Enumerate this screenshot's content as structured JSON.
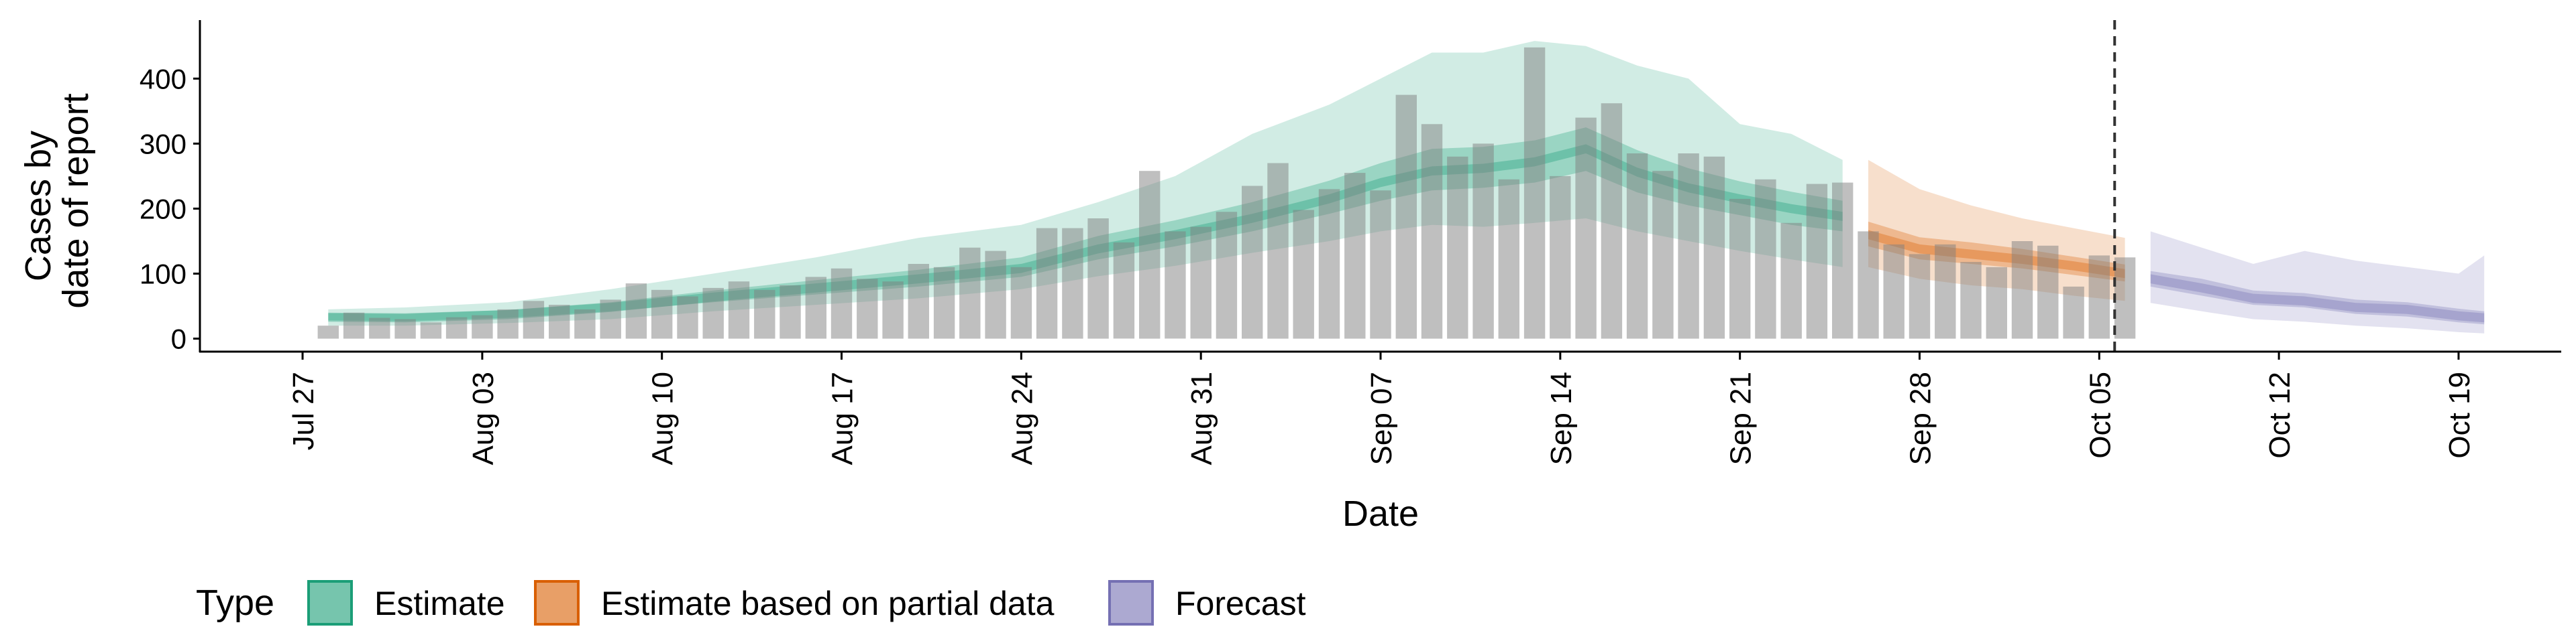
{
  "chart_data": {
    "type": "bar",
    "xlabel": "Date",
    "ylabel": [
      "Cases by",
      "date of report"
    ],
    "x_ticks": [
      {
        "date": "2020-07-27",
        "label": "Jul 27"
      },
      {
        "date": "2020-08-03",
        "label": "Aug 03"
      },
      {
        "date": "2020-08-10",
        "label": "Aug 10"
      },
      {
        "date": "2020-08-17",
        "label": "Aug 17"
      },
      {
        "date": "2020-08-24",
        "label": "Aug 24"
      },
      {
        "date": "2020-08-31",
        "label": "Aug 31"
      },
      {
        "date": "2020-09-07",
        "label": "Sep 07"
      },
      {
        "date": "2020-09-14",
        "label": "Sep 14"
      },
      {
        "date": "2020-09-21",
        "label": "Sep 21"
      },
      {
        "date": "2020-09-28",
        "label": "Sep 28"
      },
      {
        "date": "2020-10-05",
        "label": "Oct 05"
      },
      {
        "date": "2020-10-12",
        "label": "Oct 12"
      },
      {
        "date": "2020-10-19",
        "label": "Oct 19"
      }
    ],
    "xlim": [
      "2020-07-23",
      "2020-10-23"
    ],
    "ylim": [
      -20,
      490
    ],
    "y_ticks": [
      0,
      100,
      200,
      300,
      400
    ],
    "forecast_start": "2020-10-06",
    "reported_cases": {
      "dates": [
        "2020-07-28",
        "2020-07-29",
        "2020-07-30",
        "2020-07-31",
        "2020-08-01",
        "2020-08-02",
        "2020-08-03",
        "2020-08-04",
        "2020-08-05",
        "2020-08-06",
        "2020-08-07",
        "2020-08-08",
        "2020-08-09",
        "2020-08-10",
        "2020-08-11",
        "2020-08-12",
        "2020-08-13",
        "2020-08-14",
        "2020-08-15",
        "2020-08-16",
        "2020-08-17",
        "2020-08-18",
        "2020-08-19",
        "2020-08-20",
        "2020-08-21",
        "2020-08-22",
        "2020-08-23",
        "2020-08-24",
        "2020-08-25",
        "2020-08-26",
        "2020-08-27",
        "2020-08-28",
        "2020-08-29",
        "2020-08-30",
        "2020-08-31",
        "2020-09-01",
        "2020-09-02",
        "2020-09-03",
        "2020-09-04",
        "2020-09-05",
        "2020-09-06",
        "2020-09-07",
        "2020-09-08",
        "2020-09-09",
        "2020-09-10",
        "2020-09-11",
        "2020-09-12",
        "2020-09-13",
        "2020-09-14",
        "2020-09-15",
        "2020-09-16",
        "2020-09-17",
        "2020-09-18",
        "2020-09-19",
        "2020-09-20",
        "2020-09-21",
        "2020-09-22",
        "2020-09-23",
        "2020-09-24",
        "2020-09-25",
        "2020-09-26",
        "2020-09-27",
        "2020-09-28",
        "2020-09-29",
        "2020-09-30",
        "2020-10-01",
        "2020-10-02",
        "2020-10-03",
        "2020-10-04",
        "2020-10-05",
        "2020-10-06"
      ],
      "values": [
        20,
        40,
        32,
        30,
        25,
        33,
        36,
        45,
        58,
        52,
        45,
        60,
        85,
        75,
        65,
        78,
        88,
        75,
        82,
        95,
        108,
        92,
        88,
        115,
        110,
        140,
        135,
        110,
        170,
        170,
        185,
        148,
        258,
        165,
        172,
        195,
        235,
        270,
        198,
        230,
        255,
        228,
        375,
        330,
        280,
        300,
        245,
        448,
        250,
        340,
        362,
        285,
        258,
        285,
        280,
        215,
        245,
        178,
        238,
        240,
        165,
        145,
        130,
        145,
        118,
        110,
        150,
        143,
        80,
        128,
        125
      ]
    },
    "series": [
      {
        "name": "Estimate",
        "color": "#1b9e77",
        "dates": [
          "2020-07-28",
          "2020-07-31",
          "2020-08-04",
          "2020-08-08",
          "2020-08-12",
          "2020-08-16",
          "2020-08-20",
          "2020-08-24",
          "2020-08-27",
          "2020-08-30",
          "2020-09-02",
          "2020-09-05",
          "2020-09-07",
          "2020-09-09",
          "2020-09-11",
          "2020-09-13",
          "2020-09-15",
          "2020-09-17",
          "2020-09-19",
          "2020-09-21",
          "2020-09-23",
          "2020-09-25"
        ],
        "median": [
          33,
          32,
          37,
          48,
          64,
          78,
          92,
          108,
          138,
          160,
          185,
          215,
          240,
          258,
          262,
          272,
          292,
          256,
          232,
          215,
          200,
          188
        ],
        "lower50": [
          28,
          27,
          32,
          42,
          56,
          68,
          80,
          95,
          122,
          142,
          165,
          192,
          212,
          228,
          232,
          240,
          258,
          225,
          205,
          190,
          175,
          165
        ],
        "upper50": [
          39,
          38,
          44,
          56,
          74,
          90,
          106,
          125,
          158,
          182,
          210,
          243,
          270,
          292,
          295,
          305,
          325,
          290,
          262,
          242,
          226,
          212
        ],
        "lower90": [
          20,
          20,
          24,
          30,
          42,
          52,
          62,
          76,
          96,
          112,
          132,
          150,
          165,
          175,
          172,
          178,
          185,
          165,
          150,
          135,
          122,
          110
        ],
        "upper90": [
          45,
          48,
          56,
          76,
          100,
          125,
          155,
          175,
          210,
          250,
          315,
          360,
          400,
          440,
          440,
          458,
          450,
          420,
          400,
          330,
          315,
          275
        ]
      },
      {
        "name": "Estimate based on partial data",
        "color": "#d95f02",
        "dates": [
          "2020-09-26",
          "2020-09-28",
          "2020-09-30",
          "2020-10-02",
          "2020-10-04",
          "2020-10-06"
        ],
        "median": [
          160,
          138,
          130,
          122,
          112,
          100
        ],
        "lower50": [
          142,
          122,
          115,
          108,
          98,
          88
        ],
        "upper50": [
          180,
          156,
          148,
          138,
          126,
          114
        ],
        "lower90": [
          110,
          92,
          82,
          76,
          66,
          58
        ],
        "upper90": [
          275,
          230,
          205,
          185,
          170,
          155
        ]
      },
      {
        "name": "Forecast",
        "color": "#7570b3",
        "dates": [
          "2020-10-07",
          "2020-10-09",
          "2020-10-11",
          "2020-10-13",
          "2020-10-15",
          "2020-10-17",
          "2020-10-19",
          "2020-10-20"
        ],
        "median": [
          92,
          78,
          62,
          58,
          48,
          45,
          35,
          32
        ],
        "lower50": [
          80,
          66,
          52,
          48,
          38,
          34,
          25,
          22
        ],
        "upper50": [
          104,
          92,
          74,
          70,
          60,
          56,
          46,
          42
        ],
        "lower90": [
          55,
          42,
          30,
          26,
          20,
          16,
          10,
          8
        ],
        "upper90": [
          165,
          140,
          115,
          135,
          120,
          110,
          100,
          128
        ]
      }
    ],
    "legend": {
      "position": "bottom-left",
      "title": "Type",
      "items": [
        "Estimate",
        "Estimate based on partial data",
        "Forecast"
      ]
    },
    "grid": false
  }
}
